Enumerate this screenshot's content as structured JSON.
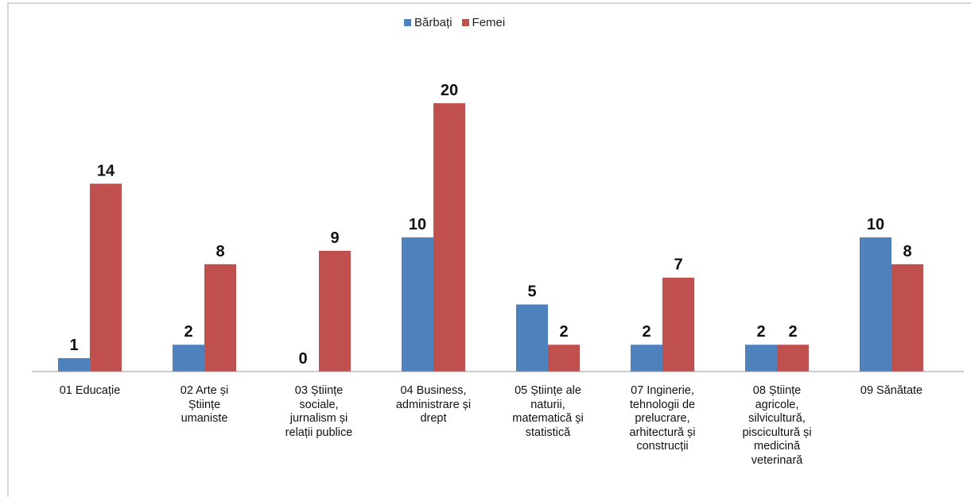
{
  "colors": {
    "Barbati": "#4f81bd",
    "Femei": "#c0504d",
    "axis": "#9a9a9a",
    "border": "#b0b0b0"
  },
  "chart_data": {
    "type": "bar",
    "title": "",
    "xlabel": "",
    "ylabel": "",
    "ylim": [
      0,
      22
    ],
    "grid": false,
    "legend_position": "top-center",
    "categories": [
      "01 Educație",
      "02 Arte și Științe umaniste",
      "03 Științe sociale, jurnalism și relații publice",
      "04 Business, administrare și drept",
      "05 Științe ale naturii, matematică și statistică",
      "07 Inginerie, tehnologii de prelucrare, arhitectură și construcții",
      "08 Științe agricole, silvicultură, piscicultură și medicină veterinară",
      "09 Sănătate"
    ],
    "category_lines": [
      "01 Educație",
      "02 Arte și\nȘtiințe\numaniste",
      "03 Științe\nsociale,\njurnalism și\nrelații publice",
      "04 Business,\nadministrare și\ndrept",
      "05 Științe ale\nnaturii,\nmatematică și\nstatistică",
      "07 Inginerie,\ntehnologii de\nprelucrare,\narhitectură și\nconstrucții",
      "08 Științe\nagricole,\nsilvicultură,\npiscicultură și\nmedicină\nveterinară",
      "09 Sănătate"
    ],
    "series": [
      {
        "name": "Bărbați",
        "values": [
          1,
          2,
          0,
          10,
          5,
          2,
          2,
          10
        ]
      },
      {
        "name": "Femei",
        "values": [
          14,
          8,
          9,
          20,
          2,
          7,
          2,
          8
        ]
      }
    ]
  }
}
